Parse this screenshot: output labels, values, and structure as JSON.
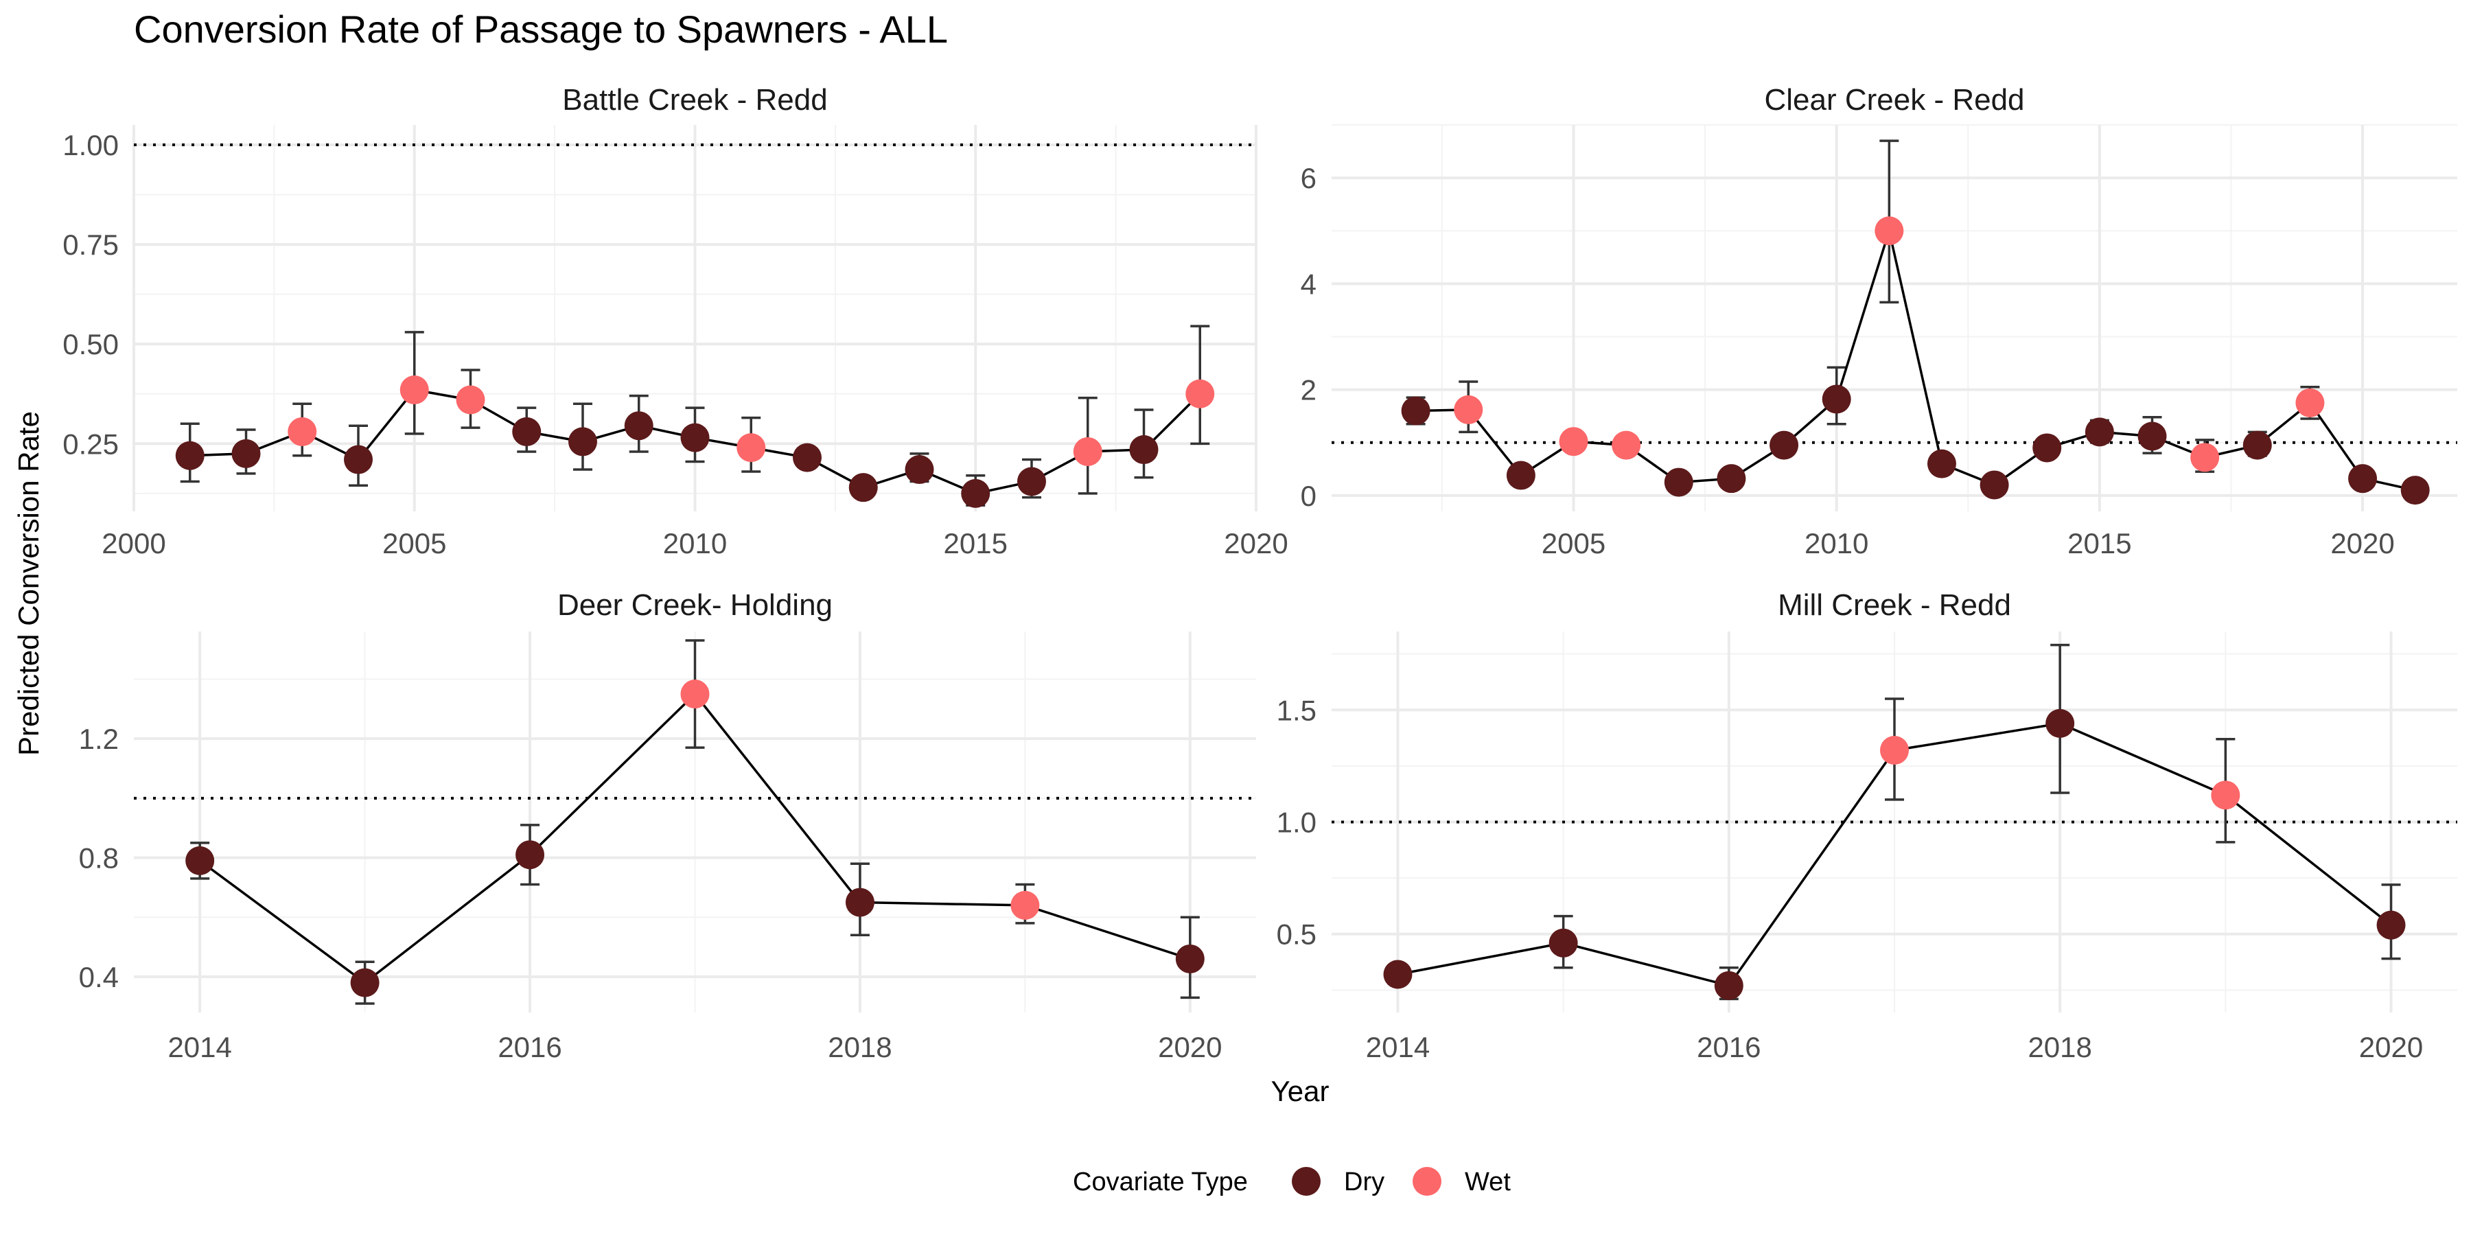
{
  "title": "Conversion Rate of Passage to Spawners - ALL",
  "xlabel": "Year",
  "ylabel": "Predicted Conversion Rate",
  "legend": {
    "title": "Covariate Type",
    "position": "bottom",
    "entries": [
      {
        "label": "Dry",
        "color": "#5c1a1b"
      },
      {
        "label": "Wet",
        "color": "#fc6769"
      }
    ]
  },
  "colors": {
    "Dry": "#5c1a1b",
    "Wet": "#fc6769",
    "line": "#000000",
    "errorbar": "#333333",
    "grid": "#ebebeb"
  },
  "chart_data": [
    {
      "type": "line",
      "title": "Battle Creek - Redd",
      "reference_line": 1,
      "xlim": [
        2000,
        2020
      ],
      "ylim": [
        0.08,
        1.05
      ],
      "xticks": [
        2000,
        2005,
        2010,
        2015,
        2020
      ],
      "yticks": [
        0.25,
        0.5,
        0.75,
        1.0
      ],
      "ytick_labels": [
        "0.25",
        "0.50",
        "0.75",
        "1.00"
      ],
      "points": [
        {
          "x": 2001,
          "y": 0.22,
          "lo": 0.155,
          "hi": 0.3,
          "type": "Dry"
        },
        {
          "x": 2002,
          "y": 0.225,
          "lo": 0.175,
          "hi": 0.285,
          "type": "Dry"
        },
        {
          "x": 2003,
          "y": 0.28,
          "lo": 0.22,
          "hi": 0.35,
          "type": "Wet"
        },
        {
          "x": 2004,
          "y": 0.21,
          "lo": 0.145,
          "hi": 0.295,
          "type": "Dry"
        },
        {
          "x": 2005,
          "y": 0.385,
          "lo": 0.275,
          "hi": 0.53,
          "type": "Wet"
        },
        {
          "x": 2006,
          "y": 0.36,
          "lo": 0.29,
          "hi": 0.435,
          "type": "Wet"
        },
        {
          "x": 2007,
          "y": 0.28,
          "lo": 0.23,
          "hi": 0.34,
          "type": "Dry"
        },
        {
          "x": 2008,
          "y": 0.255,
          "lo": 0.185,
          "hi": 0.35,
          "type": "Dry"
        },
        {
          "x": 2009,
          "y": 0.295,
          "lo": 0.23,
          "hi": 0.37,
          "type": "Dry"
        },
        {
          "x": 2010,
          "y": 0.265,
          "lo": 0.205,
          "hi": 0.34,
          "type": "Dry"
        },
        {
          "x": 2011,
          "y": 0.24,
          "lo": 0.18,
          "hi": 0.315,
          "type": "Wet"
        },
        {
          "x": 2012,
          "y": 0.215,
          "lo": 0.205,
          "hi": 0.225,
          "type": "Dry"
        },
        {
          "x": 2013,
          "y": 0.14,
          "lo": 0.13,
          "hi": 0.15,
          "type": "Dry"
        },
        {
          "x": 2014,
          "y": 0.185,
          "lo": 0.155,
          "hi": 0.225,
          "type": "Dry"
        },
        {
          "x": 2015,
          "y": 0.125,
          "lo": 0.095,
          "hi": 0.17,
          "type": "Dry"
        },
        {
          "x": 2016,
          "y": 0.155,
          "lo": 0.115,
          "hi": 0.21,
          "type": "Dry"
        },
        {
          "x": 2017,
          "y": 0.23,
          "lo": 0.125,
          "hi": 0.365,
          "type": "Wet"
        },
        {
          "x": 2018,
          "y": 0.235,
          "lo": 0.165,
          "hi": 0.335,
          "type": "Dry"
        },
        {
          "x": 2019,
          "y": 0.375,
          "lo": 0.25,
          "hi": 0.545,
          "type": "Wet"
        }
      ]
    },
    {
      "type": "line",
      "title": "Clear Creek - Redd",
      "reference_line": 1,
      "xlim": [
        2000.4,
        2021.8
      ],
      "ylim": [
        -0.3,
        7.0
      ],
      "xticks": [
        2005,
        2010,
        2015,
        2020
      ],
      "yticks": [
        0,
        2,
        4,
        6
      ],
      "ytick_labels": [
        "0",
        "2",
        "4",
        "6"
      ],
      "points": [
        {
          "x": 2002,
          "y": 1.6,
          "lo": 1.35,
          "hi": 1.85,
          "type": "Dry"
        },
        {
          "x": 2003,
          "y": 1.62,
          "lo": 1.2,
          "hi": 2.15,
          "type": "Wet"
        },
        {
          "x": 2004,
          "y": 0.38,
          "lo": 0.3,
          "hi": 0.45,
          "type": "Dry"
        },
        {
          "x": 2005,
          "y": 1.02,
          "lo": 0.88,
          "hi": 1.18,
          "type": "Wet"
        },
        {
          "x": 2006,
          "y": 0.95,
          "lo": 0.88,
          "hi": 1.02,
          "type": "Wet"
        },
        {
          "x": 2007,
          "y": 0.25,
          "lo": 0.2,
          "hi": 0.3,
          "type": "Dry"
        },
        {
          "x": 2008,
          "y": 0.32,
          "lo": 0.26,
          "hi": 0.38,
          "type": "Dry"
        },
        {
          "x": 2009,
          "y": 0.95,
          "lo": 0.88,
          "hi": 1.02,
          "type": "Dry"
        },
        {
          "x": 2010,
          "y": 1.82,
          "lo": 1.35,
          "hi": 2.42,
          "type": "Dry"
        },
        {
          "x": 2011,
          "y": 5.0,
          "lo": 3.65,
          "hi": 6.7,
          "type": "Wet"
        },
        {
          "x": 2012,
          "y": 0.6,
          "lo": 0.5,
          "hi": 0.7,
          "type": "Dry"
        },
        {
          "x": 2013,
          "y": 0.2,
          "lo": 0.15,
          "hi": 0.25,
          "type": "Dry"
        },
        {
          "x": 2014,
          "y": 0.9,
          "lo": 0.83,
          "hi": 0.97,
          "type": "Dry"
        },
        {
          "x": 2015,
          "y": 1.2,
          "lo": 1.0,
          "hi": 1.42,
          "type": "Dry"
        },
        {
          "x": 2016,
          "y": 1.12,
          "lo": 0.8,
          "hi": 1.48,
          "type": "Dry"
        },
        {
          "x": 2017,
          "y": 0.72,
          "lo": 0.45,
          "hi": 1.05,
          "type": "Wet"
        },
        {
          "x": 2018,
          "y": 0.95,
          "lo": 0.75,
          "hi": 1.2,
          "type": "Dry"
        },
        {
          "x": 2019,
          "y": 1.75,
          "lo": 1.45,
          "hi": 2.05,
          "type": "Wet"
        },
        {
          "x": 2020,
          "y": 0.32,
          "lo": 0.27,
          "hi": 0.37,
          "type": "Dry"
        },
        {
          "x": 2021,
          "y": 0.1,
          "lo": 0.07,
          "hi": 0.13,
          "type": "Dry"
        }
      ]
    },
    {
      "type": "line",
      "title": "Deer Creek- Holding",
      "reference_line": 1,
      "xlim": [
        2013.6,
        2020.4
      ],
      "ylim": [
        0.28,
        1.56
      ],
      "xticks": [
        2014,
        2016,
        2018,
        2020
      ],
      "yticks": [
        0.4,
        0.8,
        1.2
      ],
      "ytick_labels": [
        "0.4",
        "0.8",
        "1.2"
      ],
      "points": [
        {
          "x": 2014,
          "y": 0.79,
          "lo": 0.73,
          "hi": 0.85,
          "type": "Dry"
        },
        {
          "x": 2015,
          "y": 0.38,
          "lo": 0.31,
          "hi": 0.45,
          "type": "Dry"
        },
        {
          "x": 2016,
          "y": 0.81,
          "lo": 0.71,
          "hi": 0.91,
          "type": "Dry"
        },
        {
          "x": 2017,
          "y": 1.35,
          "lo": 1.17,
          "hi": 1.53,
          "type": "Wet"
        },
        {
          "x": 2018,
          "y": 0.65,
          "lo": 0.54,
          "hi": 0.78,
          "type": "Dry"
        },
        {
          "x": 2019,
          "y": 0.64,
          "lo": 0.58,
          "hi": 0.71,
          "type": "Wet"
        },
        {
          "x": 2020,
          "y": 0.46,
          "lo": 0.33,
          "hi": 0.6,
          "type": "Dry"
        }
      ]
    },
    {
      "type": "line",
      "title": "Mill Creek - Redd",
      "reference_line": 1,
      "xlim": [
        2013.6,
        2020.4
      ],
      "ylim": [
        0.15,
        1.85
      ],
      "xticks": [
        2014,
        2016,
        2018,
        2020
      ],
      "yticks": [
        0.5,
        1.0,
        1.5
      ],
      "ytick_labels": [
        "0.5",
        "1.0",
        "1.5"
      ],
      "points": [
        {
          "x": 2014,
          "y": 0.32,
          "lo": 0.28,
          "hi": 0.36,
          "type": "Dry"
        },
        {
          "x": 2015,
          "y": 0.46,
          "lo": 0.35,
          "hi": 0.58,
          "type": "Dry"
        },
        {
          "x": 2016,
          "y": 0.27,
          "lo": 0.21,
          "hi": 0.35,
          "type": "Dry"
        },
        {
          "x": 2017,
          "y": 1.32,
          "lo": 1.1,
          "hi": 1.55,
          "type": "Wet"
        },
        {
          "x": 2018,
          "y": 1.44,
          "lo": 1.13,
          "hi": 1.79,
          "type": "Dry"
        },
        {
          "x": 2019,
          "y": 1.12,
          "lo": 0.91,
          "hi": 1.37,
          "type": "Wet"
        },
        {
          "x": 2020,
          "y": 0.54,
          "lo": 0.39,
          "hi": 0.72,
          "type": "Dry"
        }
      ]
    }
  ]
}
